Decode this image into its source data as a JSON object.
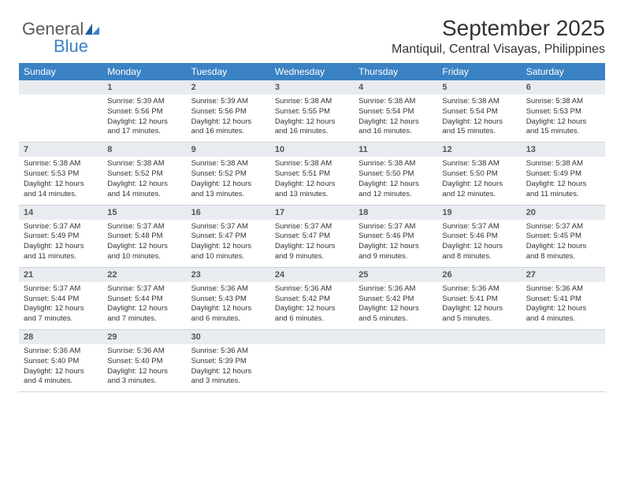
{
  "brand": {
    "name1": "General",
    "name2": "Blue"
  },
  "header": {
    "title": "September 2025",
    "location": "Mantiquil, Central Visayas, Philippines"
  },
  "colors": {
    "header_bg": "#3b82c4",
    "header_text": "#ffffff",
    "daynum_bg": "#e8ebef",
    "text": "#333333",
    "border": "#cfd4d9"
  },
  "dayNames": [
    "Sunday",
    "Monday",
    "Tuesday",
    "Wednesday",
    "Thursday",
    "Friday",
    "Saturday"
  ],
  "weeks": [
    {
      "nums": [
        "",
        "1",
        "2",
        "3",
        "4",
        "5",
        "6"
      ],
      "cells": [
        null,
        {
          "sr": "Sunrise: 5:39 AM",
          "ss": "Sunset: 5:56 PM",
          "dl": "Daylight: 12 hours and 17 minutes."
        },
        {
          "sr": "Sunrise: 5:39 AM",
          "ss": "Sunset: 5:56 PM",
          "dl": "Daylight: 12 hours and 16 minutes."
        },
        {
          "sr": "Sunrise: 5:38 AM",
          "ss": "Sunset: 5:55 PM",
          "dl": "Daylight: 12 hours and 16 minutes."
        },
        {
          "sr": "Sunrise: 5:38 AM",
          "ss": "Sunset: 5:54 PM",
          "dl": "Daylight: 12 hours and 16 minutes."
        },
        {
          "sr": "Sunrise: 5:38 AM",
          "ss": "Sunset: 5:54 PM",
          "dl": "Daylight: 12 hours and 15 minutes."
        },
        {
          "sr": "Sunrise: 5:38 AM",
          "ss": "Sunset: 5:53 PM",
          "dl": "Daylight: 12 hours and 15 minutes."
        }
      ]
    },
    {
      "nums": [
        "7",
        "8",
        "9",
        "10",
        "11",
        "12",
        "13"
      ],
      "cells": [
        {
          "sr": "Sunrise: 5:38 AM",
          "ss": "Sunset: 5:53 PM",
          "dl": "Daylight: 12 hours and 14 minutes."
        },
        {
          "sr": "Sunrise: 5:38 AM",
          "ss": "Sunset: 5:52 PM",
          "dl": "Daylight: 12 hours and 14 minutes."
        },
        {
          "sr": "Sunrise: 5:38 AM",
          "ss": "Sunset: 5:52 PM",
          "dl": "Daylight: 12 hours and 13 minutes."
        },
        {
          "sr": "Sunrise: 5:38 AM",
          "ss": "Sunset: 5:51 PM",
          "dl": "Daylight: 12 hours and 13 minutes."
        },
        {
          "sr": "Sunrise: 5:38 AM",
          "ss": "Sunset: 5:50 PM",
          "dl": "Daylight: 12 hours and 12 minutes."
        },
        {
          "sr": "Sunrise: 5:38 AM",
          "ss": "Sunset: 5:50 PM",
          "dl": "Daylight: 12 hours and 12 minutes."
        },
        {
          "sr": "Sunrise: 5:38 AM",
          "ss": "Sunset: 5:49 PM",
          "dl": "Daylight: 12 hours and 11 minutes."
        }
      ]
    },
    {
      "nums": [
        "14",
        "15",
        "16",
        "17",
        "18",
        "19",
        "20"
      ],
      "cells": [
        {
          "sr": "Sunrise: 5:37 AM",
          "ss": "Sunset: 5:49 PM",
          "dl": "Daylight: 12 hours and 11 minutes."
        },
        {
          "sr": "Sunrise: 5:37 AM",
          "ss": "Sunset: 5:48 PM",
          "dl": "Daylight: 12 hours and 10 minutes."
        },
        {
          "sr": "Sunrise: 5:37 AM",
          "ss": "Sunset: 5:47 PM",
          "dl": "Daylight: 12 hours and 10 minutes."
        },
        {
          "sr": "Sunrise: 5:37 AM",
          "ss": "Sunset: 5:47 PM",
          "dl": "Daylight: 12 hours and 9 minutes."
        },
        {
          "sr": "Sunrise: 5:37 AM",
          "ss": "Sunset: 5:46 PM",
          "dl": "Daylight: 12 hours and 9 minutes."
        },
        {
          "sr": "Sunrise: 5:37 AM",
          "ss": "Sunset: 5:46 PM",
          "dl": "Daylight: 12 hours and 8 minutes."
        },
        {
          "sr": "Sunrise: 5:37 AM",
          "ss": "Sunset: 5:45 PM",
          "dl": "Daylight: 12 hours and 8 minutes."
        }
      ]
    },
    {
      "nums": [
        "21",
        "22",
        "23",
        "24",
        "25",
        "26",
        "27"
      ],
      "cells": [
        {
          "sr": "Sunrise: 5:37 AM",
          "ss": "Sunset: 5:44 PM",
          "dl": "Daylight: 12 hours and 7 minutes."
        },
        {
          "sr": "Sunrise: 5:37 AM",
          "ss": "Sunset: 5:44 PM",
          "dl": "Daylight: 12 hours and 7 minutes."
        },
        {
          "sr": "Sunrise: 5:36 AM",
          "ss": "Sunset: 5:43 PM",
          "dl": "Daylight: 12 hours and 6 minutes."
        },
        {
          "sr": "Sunrise: 5:36 AM",
          "ss": "Sunset: 5:42 PM",
          "dl": "Daylight: 12 hours and 6 minutes."
        },
        {
          "sr": "Sunrise: 5:36 AM",
          "ss": "Sunset: 5:42 PM",
          "dl": "Daylight: 12 hours and 5 minutes."
        },
        {
          "sr": "Sunrise: 5:36 AM",
          "ss": "Sunset: 5:41 PM",
          "dl": "Daylight: 12 hours and 5 minutes."
        },
        {
          "sr": "Sunrise: 5:36 AM",
          "ss": "Sunset: 5:41 PM",
          "dl": "Daylight: 12 hours and 4 minutes."
        }
      ]
    },
    {
      "nums": [
        "28",
        "29",
        "30",
        "",
        "",
        "",
        ""
      ],
      "cells": [
        {
          "sr": "Sunrise: 5:36 AM",
          "ss": "Sunset: 5:40 PM",
          "dl": "Daylight: 12 hours and 4 minutes."
        },
        {
          "sr": "Sunrise: 5:36 AM",
          "ss": "Sunset: 5:40 PM",
          "dl": "Daylight: 12 hours and 3 minutes."
        },
        {
          "sr": "Sunrise: 5:36 AM",
          "ss": "Sunset: 5:39 PM",
          "dl": "Daylight: 12 hours and 3 minutes."
        },
        null,
        null,
        null,
        null
      ]
    }
  ]
}
